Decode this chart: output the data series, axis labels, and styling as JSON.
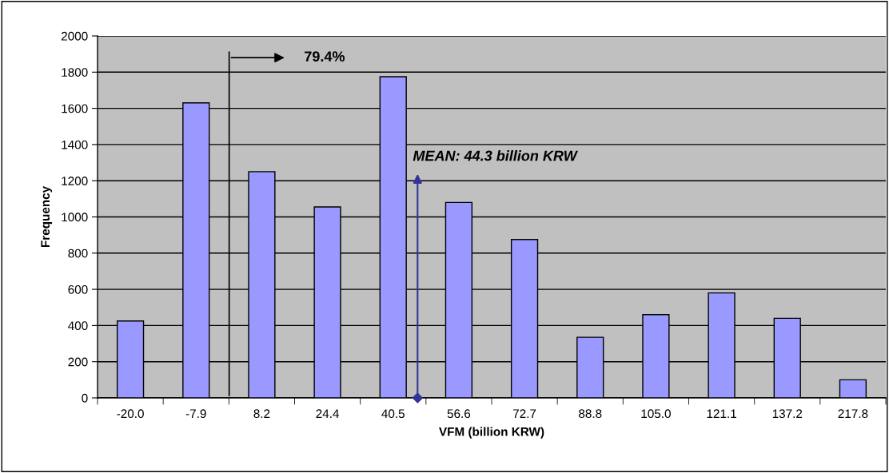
{
  "chart_data": {
    "type": "bar",
    "xlabel": "VFM (billion KRW)",
    "ylabel": "Frequency",
    "categories": [
      "-20.0",
      "-7.9",
      "8.2",
      "24.4",
      "40.5",
      "56.6",
      "72.7",
      "88.8",
      "105.0",
      "121.1",
      "137.2",
      "217.8"
    ],
    "values": [
      425,
      1630,
      1250,
      1055,
      1775,
      1080,
      875,
      335,
      460,
      580,
      440,
      100
    ],
    "color": "#9999ff",
    "ylim": [
      0,
      2000
    ],
    "yticks": [
      0,
      200,
      400,
      600,
      800,
      1000,
      1200,
      1400,
      1600,
      1800,
      2000
    ],
    "grid": "y",
    "annotations": [
      "79.4%",
      "MEAN: 44.3 billion KRW"
    ]
  }
}
